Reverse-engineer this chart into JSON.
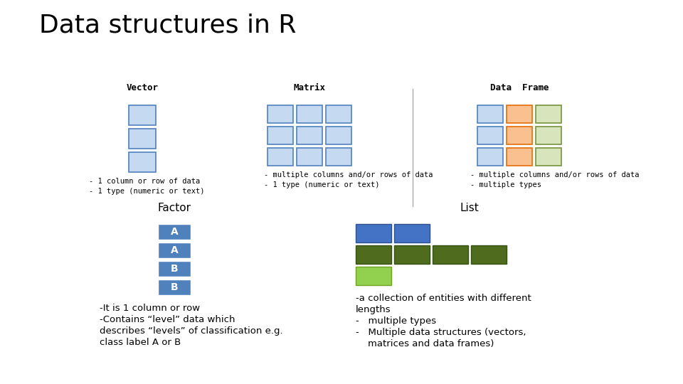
{
  "title": "Data structures in R",
  "title_fontsize": 26,
  "bg_color": "#ffffff",
  "vector_label": "Vector",
  "matrix_label": "Matrix",
  "dataframe_label": "Data  Frame",
  "factor_label": "Factor",
  "list_label": "List",
  "vector_color_fill": "#c5d9f1",
  "vector_color_edge": "#4f81bd",
  "matrix_color_fill": "#c5d9f1",
  "matrix_color_edge": "#4f81bd",
  "df_blue_fill": "#c5d9f1",
  "df_blue_edge": "#4f81bd",
  "df_orange_fill": "#fac090",
  "df_orange_edge": "#e36c09",
  "df_green_fill": "#d7e4bc",
  "df_green_edge": "#76923c",
  "factor_cell_fill": "#4f81bd",
  "factor_cell_edge": "#ffffff",
  "factor_labels": [
    "A",
    "A",
    "B",
    "B"
  ],
  "list_blue_fill": "#4472c4",
  "list_blue_edge": "#2f528f",
  "list_green_dark_fill": "#4e6b1e",
  "list_green_dark_edge": "#375117",
  "list_green_light_fill": "#92d050",
  "list_green_light_edge": "#6fa321",
  "vector_desc": [
    "- 1 column or row of data",
    "- 1 type (numeric or text)"
  ],
  "matrix_desc": [
    "- multiple columns and/or rows of data",
    "- 1 type (numeric or text)"
  ],
  "df_desc": [
    "- multiple columns and/or rows of data",
    "- multiple types"
  ],
  "factor_desc_lines": [
    "-It is 1 column or row",
    "-Contains “level” data which",
    "describes “levels” of classification e.g.",
    "class label A or B"
  ],
  "list_desc_lines": [
    "-a collection of entities with different",
    "lengths",
    "-   multiple types",
    "-   Multiple data structures (vectors,",
    "    matrices and data frames)"
  ]
}
